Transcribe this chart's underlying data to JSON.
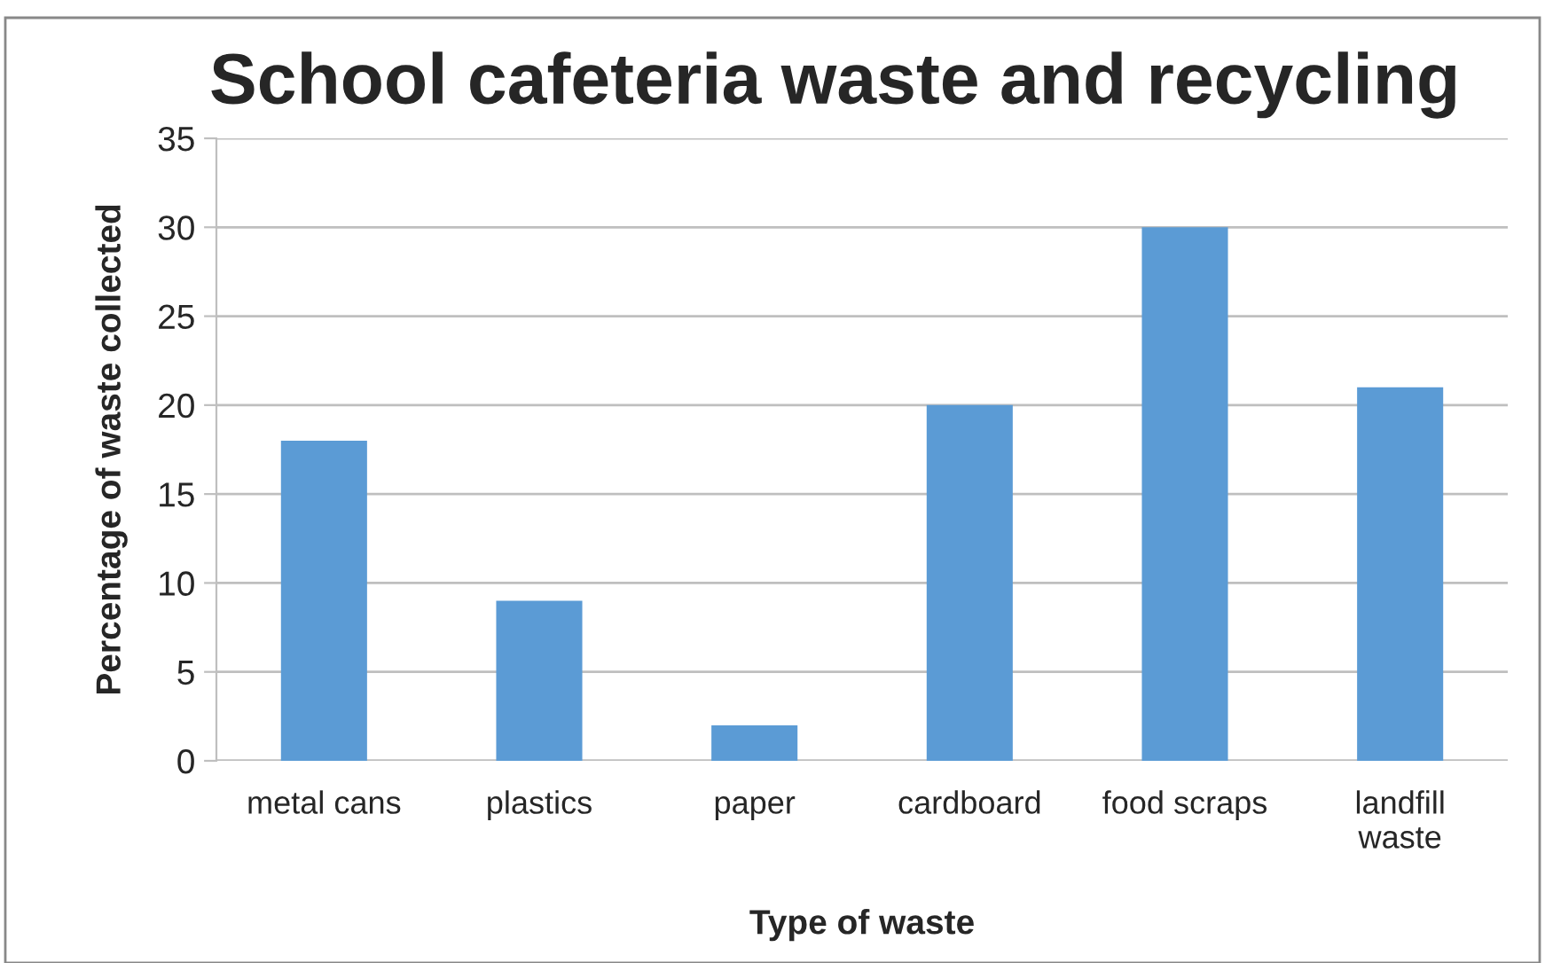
{
  "chart_data": {
    "type": "bar",
    "title": "School cafeteria waste and recycling",
    "xlabel": "Type of waste",
    "ylabel": "Percentage of waste collected",
    "categories": [
      "metal cans",
      "plastics",
      "paper",
      "cardboard",
      "food scraps",
      "landfill\nwaste"
    ],
    "values": [
      18,
      9,
      2,
      20,
      30,
      21
    ],
    "color": "#5b9bd5",
    "ylim": [
      0,
      35
    ],
    "yticks": [
      0,
      5,
      10,
      15,
      20,
      25,
      30,
      35
    ],
    "grid": "y",
    "legend": false
  }
}
